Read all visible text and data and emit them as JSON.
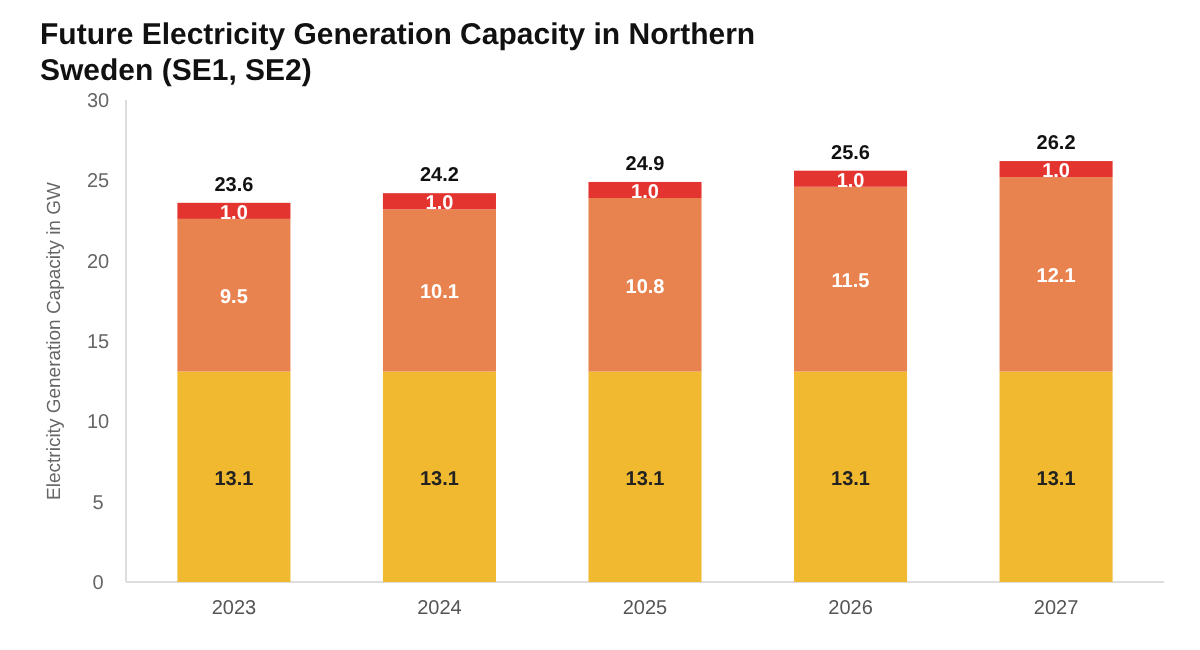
{
  "chart_data": {
    "type": "bar",
    "title": "Future Electricity Generation Capacity in Northern Sweden (SE1, SE2)",
    "ylabel": "Electricity Generation Capacity in GW",
    "categories": [
      "2023",
      "2024",
      "2025",
      "2026",
      "2027"
    ],
    "stacked": true,
    "ylim": [
      0,
      30
    ],
    "yticks": [
      0,
      5,
      10,
      15,
      20,
      25,
      30
    ],
    "grid": false,
    "series": [
      {
        "color": "#f0b92f",
        "values": [
          13.1,
          13.1,
          13.1,
          13.1,
          13.1
        ],
        "value_labels": [
          "13.1",
          "13.1",
          "13.1",
          "13.1",
          "13.1"
        ]
      },
      {
        "color": "#e8834f",
        "values": [
          9.5,
          10.1,
          10.8,
          11.5,
          12.1
        ],
        "value_labels": [
          "9.5",
          "10.1",
          "10.8",
          "11.5",
          "12.1"
        ]
      },
      {
        "color": "#e3342f",
        "values": [
          1,
          1,
          1,
          1,
          1
        ],
        "value_labels": [
          "1.0",
          "1.0",
          "1.0",
          "1.0",
          "1.0"
        ]
      }
    ],
    "totals": [
      "23.6",
      "24.2",
      "24.9",
      "25.6",
      "26.2"
    ]
  }
}
